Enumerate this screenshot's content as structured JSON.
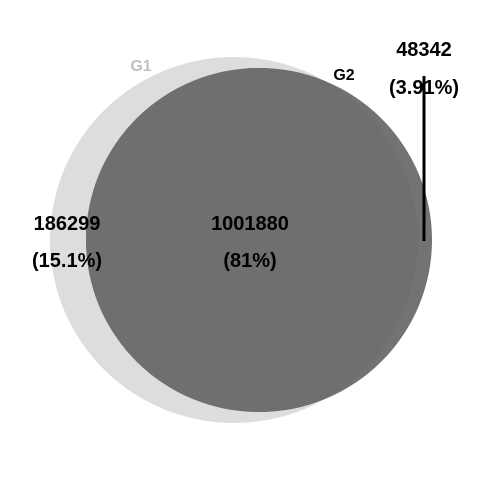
{
  "diagram": {
    "type": "venn",
    "sets": [
      {
        "label": "G1",
        "color": "#dddddd",
        "label_color": "#c0c0c0"
      },
      {
        "label": "G2",
        "color": "#737373",
        "label_color": "#000000"
      }
    ],
    "overlap_color": "#6f6f6f",
    "regions": {
      "g1_only": {
        "count": "186299",
        "percent": "(15.1%)"
      },
      "both": {
        "count": "1001880",
        "percent": "(81%)"
      },
      "g2_only": {
        "count": "48342",
        "percent": "(3.91%)"
      }
    }
  }
}
